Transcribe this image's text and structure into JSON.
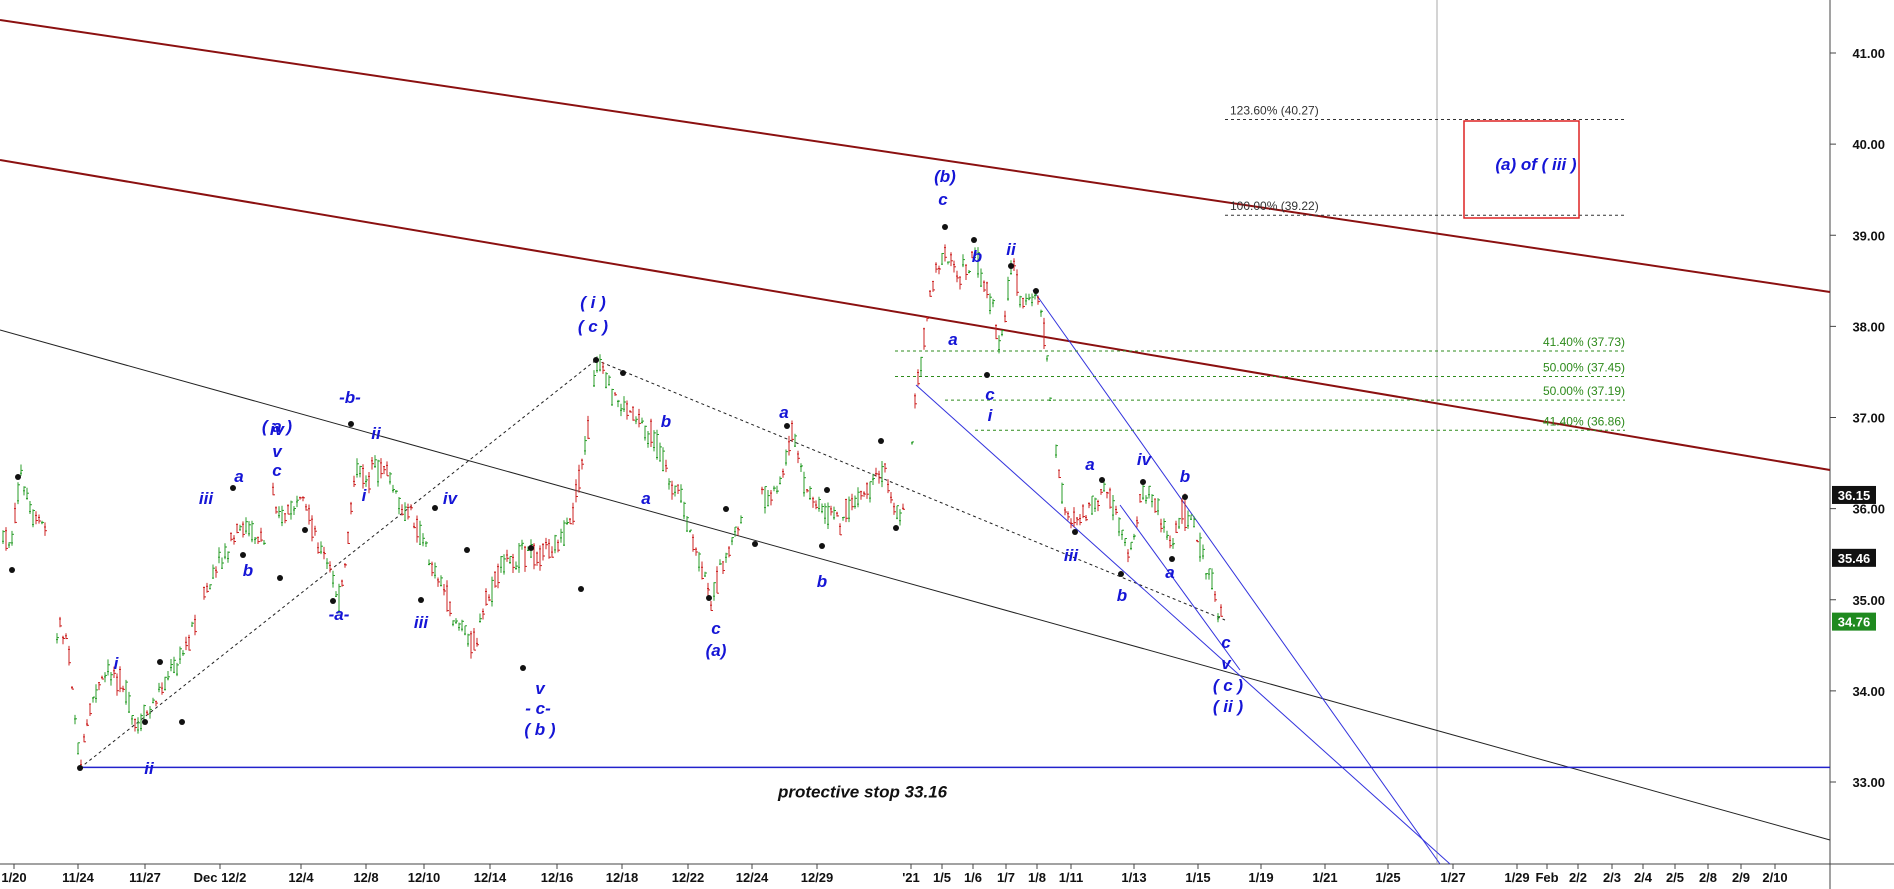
{
  "chart_data": {
    "type": "candlestick",
    "y_axis": {
      "side": "right",
      "ylim": [
        32.2,
        41.6
      ],
      "ticks": [
        "41.00",
        "40.00",
        "39.00",
        "38.00",
        "37.00",
        "36.00",
        "35.00",
        "34.00",
        "33.00"
      ]
    },
    "x_ticks": [
      "1/20",
      "11/24",
      "11/27",
      "Dec 12/2",
      "12/4",
      "12/8",
      "12/10",
      "12/14",
      "12/16",
      "12/18",
      "12/22",
      "12/24",
      "12/29",
      "'21",
      "1/5",
      "1/6",
      "1/7",
      "1/8",
      "1/11",
      "1/13",
      "1/15",
      "1/19",
      "1/21",
      "1/25",
      "1/27",
      "1/29",
      "Feb",
      "2/2",
      "2/3",
      "2/4",
      "2/5",
      "2/8",
      "2/9",
      "2/10"
    ],
    "price_tags": [
      {
        "text": "36.15",
        "value": 36.15,
        "color": "#111111"
      },
      {
        "text": "35.46",
        "value": 35.46,
        "color": "#111111"
      },
      {
        "text": "34.76",
        "value": 34.76,
        "color": "#1f8a1f"
      }
    ],
    "fib_levels": [
      {
        "text": "123.60% (40.27)",
        "value": 40.27,
        "color": "#333333"
      },
      {
        "text": "100.00% (39.22)",
        "value": 39.22,
        "color": "#333333"
      },
      {
        "text": "41.40% (37.73)",
        "value": 37.73,
        "color": "#2e8b1c"
      },
      {
        "text": "50.00% (37.45)",
        "value": 37.45,
        "color": "#2e8b1c"
      },
      {
        "text": "50.00% (37.19)",
        "value": 37.19,
        "color": "#2e8b1c"
      },
      {
        "text": "41.40% (36.86)",
        "value": 36.86,
        "color": "#2e8b1c"
      }
    ],
    "target_box_label": "(a) of ( iii )",
    "stop_value": 33.16,
    "stop_label": "protective stop 33.16",
    "wave_labels": [
      "iii",
      "a",
      "b",
      "iv",
      "( a )",
      "v",
      "c",
      "-b-",
      "ii",
      "i",
      "-a-",
      "iv",
      "iii",
      "v",
      "- c-",
      "( b )",
      "( i )",
      "( c )",
      "b",
      "a",
      "a",
      "c",
      "(a)",
      "b",
      "(b)",
      "c",
      "b",
      "ii",
      "a",
      "c",
      "i",
      "a",
      "iv",
      "b",
      "iii",
      "b",
      "a",
      "c",
      "v",
      "( c )",
      "( ii )",
      "i",
      "ii"
    ],
    "colors": {
      "up_candle": "#2a9d2a",
      "down_candle": "#cc2222",
      "wave_label": "#1515d6",
      "channel_outer": "#8b1010",
      "channel_inner": "#101010",
      "blue_lines": "#3333dd",
      "fib": "#2e8b1c",
      "target_box": "#dd2222"
    }
  }
}
